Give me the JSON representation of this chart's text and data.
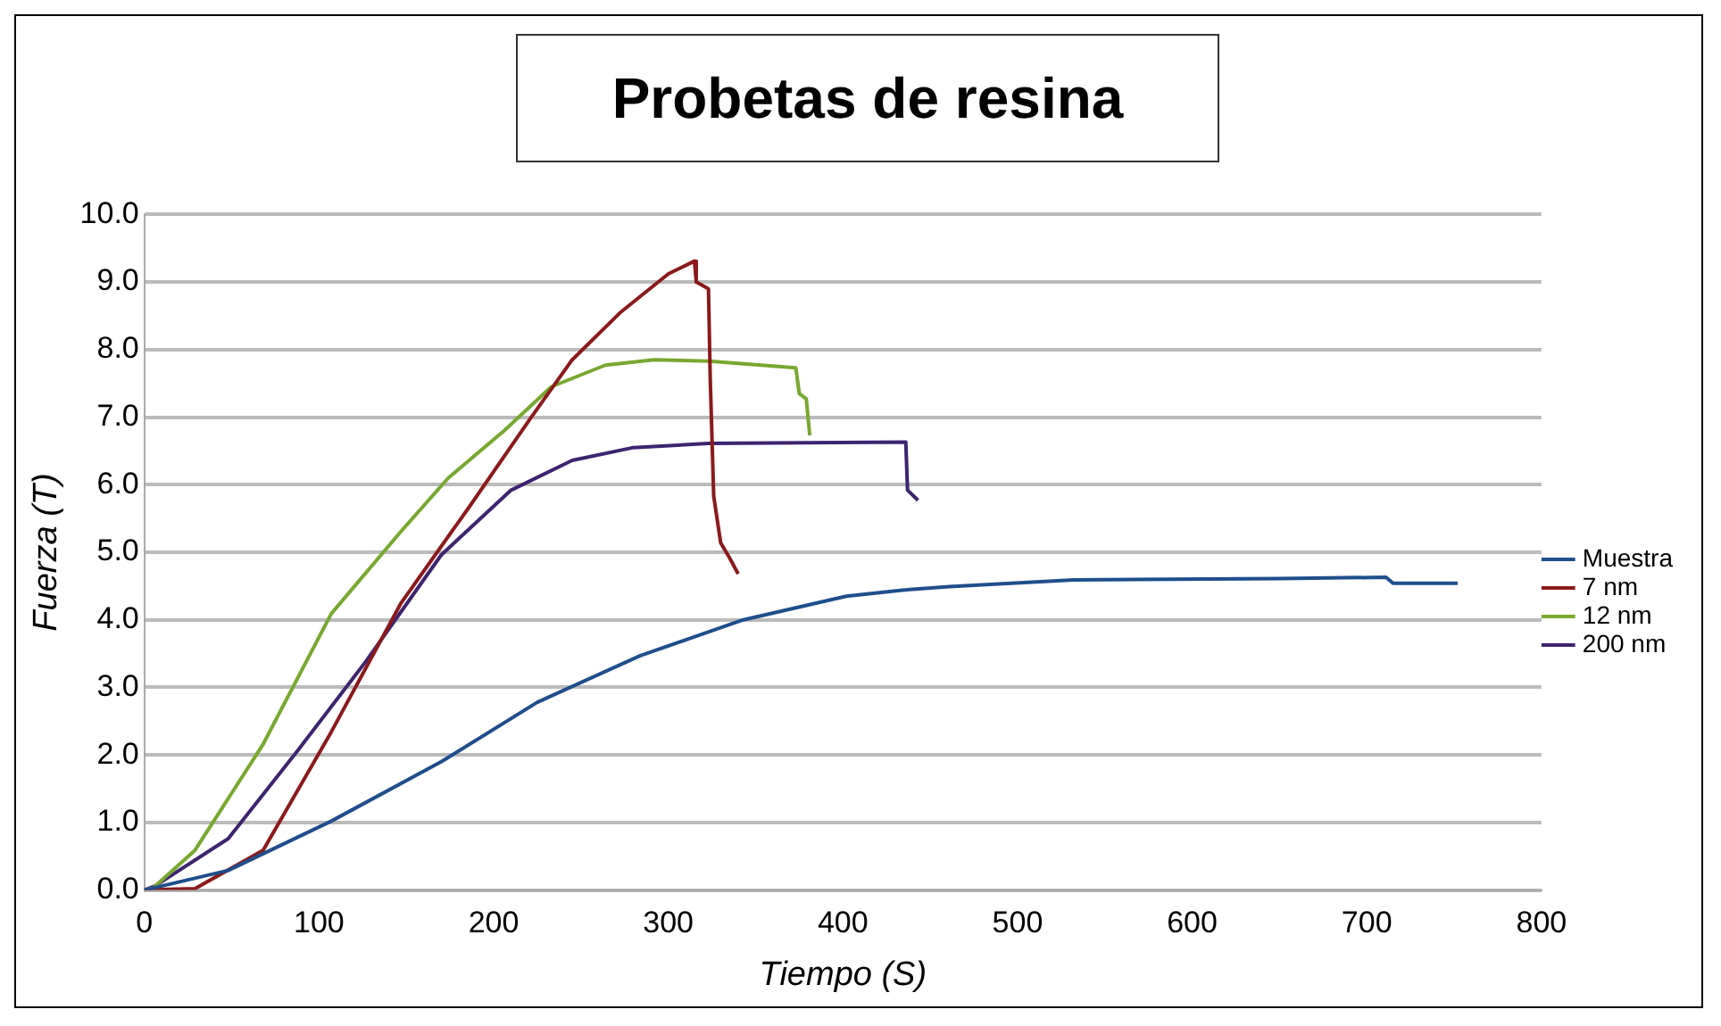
{
  "chart_data": {
    "type": "line",
    "title": "Probetas de resina",
    "xlabel": "Tiempo (S)",
    "ylabel": "Fuerza (T)",
    "xlim": [
      0,
      800
    ],
    "xticks": [
      0,
      100,
      200,
      300,
      400,
      500,
      600,
      700,
      800
    ],
    "ylim": [
      0,
      10
    ],
    "yticks": [
      {
        "value": 0,
        "label": "0.0"
      },
      {
        "value": 1,
        "label": "1.0"
      },
      {
        "value": 2,
        "label": "2.0"
      },
      {
        "value": 3,
        "label": "3.0"
      },
      {
        "value": 4,
        "label": "4.0"
      },
      {
        "value": 5,
        "label": "5.0"
      },
      {
        "value": 6,
        "label": "6.0"
      },
      {
        "value": 7,
        "label": "7.0"
      },
      {
        "value": 8,
        "label": "8.0"
      },
      {
        "value": 9,
        "label": "9.0"
      },
      {
        "value": 10,
        "label": "10.0"
      }
    ],
    "grid": "y",
    "legend": "right",
    "marker": "none",
    "line_style": "solid",
    "series": [
      {
        "name": "Muestra",
        "color": "#1f4e8c",
        "x": [
          0,
          48,
          107,
          170,
          225,
          284,
          343,
          402,
          434,
          461,
          532,
          650,
          711,
          715,
          752
        ],
        "values": [
          0,
          0.29,
          1.02,
          1.9,
          2.78,
          3.47,
          4.0,
          4.35,
          4.44,
          4.49,
          4.59,
          4.61,
          4.63,
          4.54,
          4.54
        ]
      },
      {
        "name": "7 nm",
        "color": "#8b1a1a",
        "x": [
          0,
          29,
          68,
          107,
          147,
          186,
          221,
          245,
          273,
          300,
          315,
          316,
          323,
          324,
          326,
          330,
          335,
          340
        ],
        "values": [
          0,
          0.02,
          0.59,
          2.34,
          4.25,
          5.67,
          6.98,
          7.85,
          8.56,
          9.12,
          9.31,
          9.0,
          8.9,
          7.59,
          5.83,
          5.14,
          4.92,
          4.68
        ]
      },
      {
        "name": "12 nm",
        "color": "#77a830",
        "x": [
          0,
          5,
          29,
          68,
          107,
          147,
          174,
          206,
          233,
          264,
          292,
          323,
          373,
          375,
          379,
          381
        ],
        "values": [
          0,
          0.03,
          0.59,
          2.16,
          4.09,
          5.31,
          6.1,
          6.8,
          7.45,
          7.77,
          7.85,
          7.83,
          7.73,
          7.35,
          7.27,
          6.73
        ]
      },
      {
        "name": "200 nm",
        "color": "#3d2470",
        "x": [
          0,
          6,
          48,
          88,
          127,
          170,
          210,
          245,
          280,
          323,
          436,
          437,
          443
        ],
        "values": [
          0,
          0.06,
          0.76,
          2.07,
          3.39,
          4.96,
          5.92,
          6.36,
          6.55,
          6.61,
          6.63,
          5.92,
          5.77
        ]
      }
    ]
  }
}
